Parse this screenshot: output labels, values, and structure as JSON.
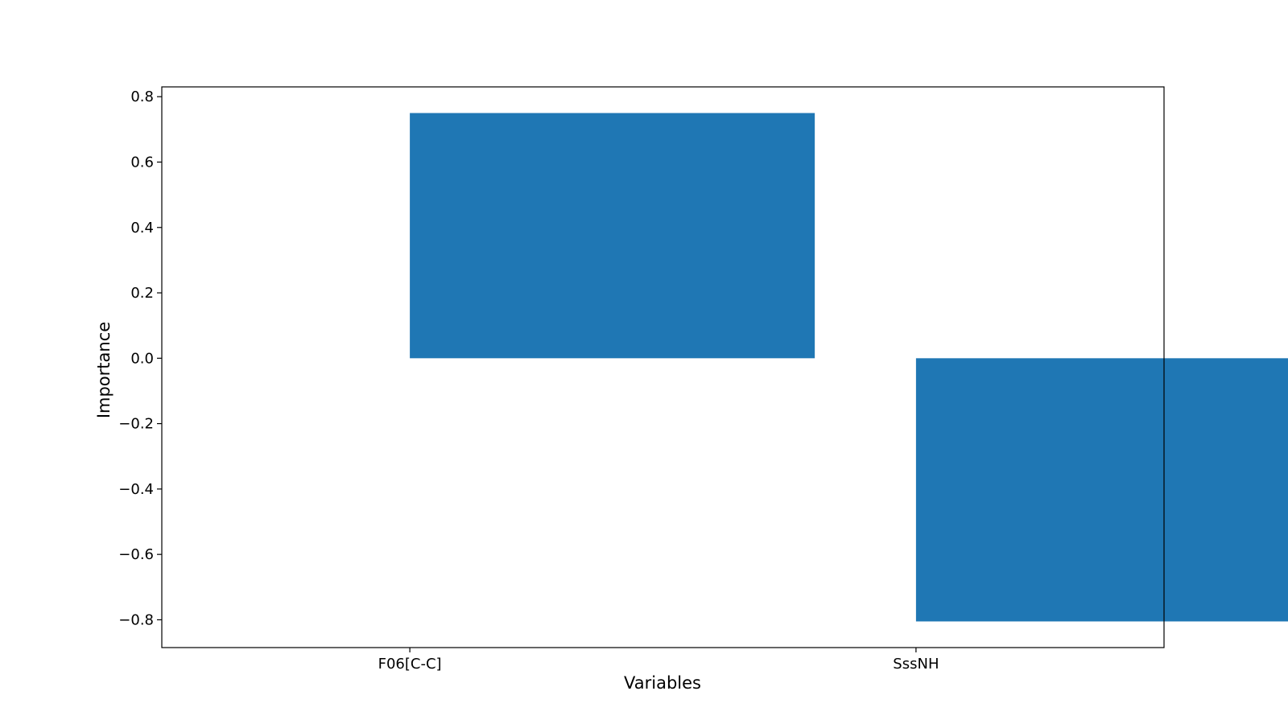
{
  "chart_data": {
    "type": "bar",
    "categories": [
      "F06[C-C]",
      "SssNH"
    ],
    "values": [
      0.75,
      -0.805
    ],
    "title": "",
    "xlabel": "Variables",
    "ylabel": "Importance",
    "ylim": [
      -0.885,
      0.83
    ],
    "yticks": [
      0.8,
      0.6,
      0.4,
      0.2,
      0.0,
      -0.2,
      -0.4,
      -0.6,
      -0.8
    ],
    "ytick_labels": [
      "0.8",
      "0.6",
      "0.4",
      "0.2",
      "0.0",
      "−0.2",
      "−0.4",
      "−0.6",
      "−0.8"
    ],
    "bar_color": "#1f77b4",
    "grid": false,
    "legend": "none"
  }
}
